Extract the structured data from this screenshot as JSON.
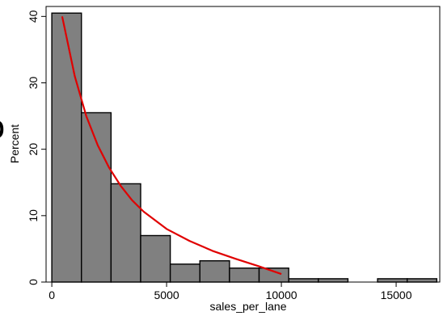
{
  "chart_data": {
    "type": "bar",
    "subtype": "histogram",
    "xlabel": "sales_per_lane",
    "ylabel": "Percent",
    "xlim": [
      -250,
      16900
    ],
    "ylim": [
      0,
      41.5
    ],
    "xticks": [
      0,
      5000,
      10000,
      15000
    ],
    "yticks": [
      0,
      10,
      20,
      30,
      40
    ],
    "bin_width": 1290,
    "bins": [
      {
        "start": 0,
        "end": 1290,
        "value": 40.5
      },
      {
        "start": 1290,
        "end": 2580,
        "value": 25.5
      },
      {
        "start": 2580,
        "end": 3870,
        "value": 14.8
      },
      {
        "start": 3870,
        "end": 5160,
        "value": 7.0
      },
      {
        "start": 5160,
        "end": 6450,
        "value": 2.7
      },
      {
        "start": 6450,
        "end": 7740,
        "value": 3.2
      },
      {
        "start": 7740,
        "end": 9030,
        "value": 2.1
      },
      {
        "start": 9030,
        "end": 10320,
        "value": 2.1
      },
      {
        "start": 10320,
        "end": 11610,
        "value": 0.5
      },
      {
        "start": 11610,
        "end": 12900,
        "value": 0.5
      },
      {
        "start": 12900,
        "end": 14190,
        "value": 0
      },
      {
        "start": 14190,
        "end": 15480,
        "value": 0.5
      },
      {
        "start": 15480,
        "end": 16770,
        "value": 0.5
      }
    ],
    "curve": {
      "type": "line",
      "x": [
        450,
        1000,
        1500,
        2000,
        2500,
        3000,
        3500,
        4000,
        5000,
        6000,
        7000,
        8000,
        9000,
        10000
      ],
      "y": [
        40.0,
        31.0,
        25.0,
        20.6,
        17.2,
        14.5,
        12.3,
        10.6,
        8.0,
        6.2,
        4.7,
        3.5,
        2.4,
        1.2
      ]
    },
    "grid": false,
    "legend": "none",
    "colors": {
      "bar_fill": "#808080",
      "bar_stroke": "#000000",
      "curve": "#e00000",
      "axis": "#000000"
    }
  },
  "extra_glyph": "S"
}
